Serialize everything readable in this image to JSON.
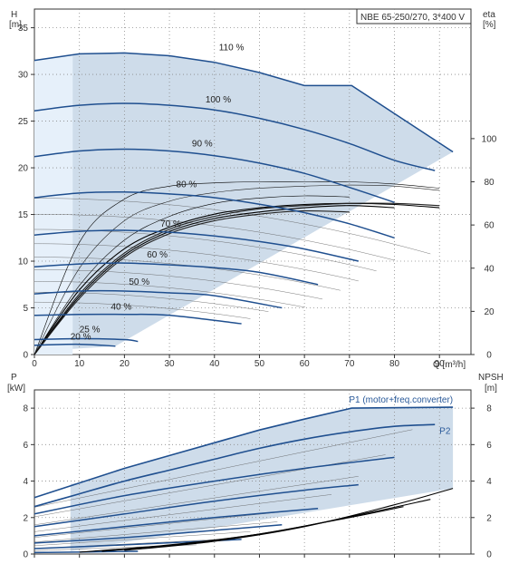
{
  "chart_data": [
    {
      "type": "line",
      "name": "head-chart",
      "title": "NBE 65-250/270, 3*400 V",
      "xlabel": "Q [m³/h]",
      "ylabel_left": {
        "name": "H",
        "unit": "[m]"
      },
      "ylabel_right": {
        "name": "eta",
        "unit": "[%]"
      },
      "xlim": [
        0,
        97
      ],
      "ylim": [
        0,
        37
      ],
      "ylim_right": [
        0,
        160
      ],
      "xticks": [
        "0",
        "10",
        "20",
        "30",
        "40",
        "50",
        "60",
        "70",
        "80",
        "90"
      ],
      "xticks_values": [
        0,
        10,
        20,
        30,
        40,
        50,
        60,
        70,
        80,
        90
      ],
      "yticks": [
        "0",
        "5",
        "10",
        "15",
        "20",
        "25",
        "30",
        "35"
      ],
      "yticks_values": [
        0,
        5,
        10,
        15,
        20,
        25,
        30,
        35
      ],
      "yticks_right": [
        "0",
        "20",
        "40",
        "60",
        "80",
        "100"
      ],
      "yticks_right_values": [
        0,
        20,
        40,
        60,
        80,
        100
      ],
      "grid": true,
      "speed_curves": [
        {
          "label": "110 %",
          "label_at": [
            41,
            32.4
          ],
          "x": [
            0,
            10,
            20,
            30,
            40,
            50,
            60,
            70.5,
            93
          ],
          "y": [
            31.5,
            32.2,
            32.3,
            32.0,
            31.3,
            30.2,
            28.8,
            28.8,
            21.7
          ]
        },
        {
          "label": "100 %",
          "label_at": [
            38,
            26.8
          ],
          "x": [
            0,
            10,
            20,
            30,
            40,
            50,
            60,
            70,
            80,
            89
          ],
          "y": [
            26.1,
            26.7,
            26.9,
            26.7,
            26.2,
            25.3,
            24.1,
            22.6,
            20.8,
            19.7
          ]
        },
        {
          "label": "90 %",
          "label_at": [
            35,
            22.1
          ],
          "x": [
            0,
            10,
            20,
            30,
            40,
            50,
            60,
            70,
            80
          ],
          "y": [
            21.2,
            21.8,
            22.0,
            21.8,
            21.3,
            20.5,
            19.4,
            17.9,
            16.3
          ]
        },
        {
          "label": "80 %",
          "label_at": [
            31.5,
            17.7
          ],
          "x": [
            0,
            10,
            20,
            30,
            40,
            50,
            60,
            70,
            80
          ],
          "y": [
            16.8,
            17.3,
            17.4,
            17.2,
            16.8,
            16.1,
            15.2,
            14.0,
            12.5
          ]
        },
        {
          "label": "70 %",
          "label_at": [
            28,
            13.5
          ],
          "x": [
            0,
            10,
            20,
            30,
            40,
            50,
            60,
            72
          ],
          "y": [
            12.8,
            13.2,
            13.3,
            13.1,
            12.7,
            12.1,
            11.3,
            10.0
          ]
        },
        {
          "label": "60 %",
          "label_at": [
            25,
            10.2
          ],
          "x": [
            0,
            10,
            20,
            30,
            40,
            50,
            63
          ],
          "y": [
            9.4,
            9.7,
            9.8,
            9.6,
            9.3,
            8.8,
            7.5
          ]
        },
        {
          "label": "50 %",
          "label_at": [
            21,
            7.3
          ],
          "x": [
            0,
            10,
            20,
            30,
            40,
            55
          ],
          "y": [
            6.5,
            6.8,
            6.8,
            6.6,
            6.3,
            5.0
          ]
        },
        {
          "label": "40 %",
          "label_at": [
            17,
            4.6
          ],
          "x": [
            0,
            10,
            20,
            30,
            46
          ],
          "y": [
            4.2,
            4.3,
            4.3,
            4.2,
            3.3
          ]
        },
        {
          "label": "25 %",
          "label_at": [
            10,
            2.2
          ],
          "x": [
            0,
            10,
            20,
            23
          ],
          "y": [
            1.6,
            1.7,
            1.6,
            1.4
          ]
        },
        {
          "label": "20 %",
          "label_at": [
            8,
            1.4
          ],
          "x": [
            0,
            10,
            18
          ],
          "y": [
            1.0,
            1.1,
            0.9
          ]
        }
      ],
      "efficiency_curves": [
        {
          "x": [
            0,
            10,
            20,
            30,
            40,
            50,
            60,
            70,
            80,
            90
          ],
          "y": [
            0,
            30,
            49,
            59,
            65,
            68,
            69.5,
            70,
            69.5,
            68
          ]
        },
        {
          "x": [
            0,
            10,
            20,
            30,
            40,
            50,
            60,
            70,
            80,
            90
          ],
          "y": [
            0,
            28,
            47,
            58,
            64,
            67.5,
            69,
            70,
            70,
            69
          ]
        },
        {
          "x": [
            0,
            10,
            20,
            30,
            40,
            50,
            60,
            70,
            80
          ],
          "y": [
            0,
            27,
            46,
            57,
            63,
            66,
            68,
            69,
            68
          ]
        },
        {
          "x": [
            0,
            10,
            20,
            30,
            40,
            50,
            60,
            70
          ],
          "y": [
            0,
            26,
            45,
            56,
            62,
            65,
            66.5,
            66
          ]
        },
        {
          "x": [
            0,
            10,
            20,
            30,
            40,
            50,
            60,
            70
          ],
          "y": [
            0,
            32,
            53,
            64,
            70,
            72.5,
            73.5,
            73
          ]
        },
        {
          "x": [
            0,
            10,
            20,
            30,
            40,
            50,
            60,
            70,
            80,
            90
          ],
          "y": [
            0,
            40,
            62,
            71,
            75,
            77,
            78,
            78.5,
            78,
            76
          ]
        },
        {
          "x": [
            0,
            10,
            20,
            30,
            40,
            50,
            60,
            70,
            80,
            90
          ],
          "y": [
            0,
            52,
            72,
            78,
            79.5,
            80,
            80,
            80,
            79,
            77
          ]
        }
      ]
    },
    {
      "type": "line",
      "name": "power-chart",
      "ylabel_left": {
        "name": "P",
        "unit": "[kW]"
      },
      "ylabel_right": {
        "name": "NPSH",
        "unit": "[m]"
      },
      "xlim": [
        0,
        97
      ],
      "ylim": [
        0,
        9
      ],
      "yticks": [
        "0",
        "2",
        "4",
        "6",
        "8"
      ],
      "yticks_values": [
        0,
        2,
        4,
        6,
        8
      ],
      "yticks_right": [
        "0",
        "2",
        "4",
        "6",
        "8"
      ],
      "yticks_right_values": [
        0,
        2,
        4,
        6,
        8
      ],
      "grid": true,
      "series": [
        {
          "name": "P1 (motor+freq.converter)",
          "x": [
            0,
            10,
            20,
            30,
            40,
            50,
            60,
            70.5,
            93
          ],
          "y": [
            3.1,
            3.9,
            4.7,
            5.4,
            6.1,
            6.8,
            7.4,
            8.0,
            8.05
          ]
        },
        {
          "name": "P2",
          "x": [
            0,
            10,
            20,
            30,
            40,
            50,
            60,
            70,
            80,
            89
          ],
          "y": [
            2.6,
            3.3,
            4.0,
            4.6,
            5.2,
            5.8,
            6.3,
            6.7,
            7.0,
            7.1
          ]
        }
      ],
      "power_speed_curves": [
        {
          "x": [
            0,
            20,
            40,
            60,
            80
          ],
          "y": [
            2.2,
            3.2,
            4.0,
            4.7,
            5.3
          ]
        },
        {
          "x": [
            0,
            20,
            40,
            60,
            72
          ],
          "y": [
            1.5,
            2.2,
            2.9,
            3.5,
            3.8
          ]
        },
        {
          "x": [
            0,
            20,
            40,
            63
          ],
          "y": [
            1.0,
            1.5,
            2.0,
            2.5
          ]
        },
        {
          "x": [
            0,
            20,
            40,
            55
          ],
          "y": [
            0.6,
            0.9,
            1.3,
            1.6
          ]
        },
        {
          "x": [
            0,
            20,
            46
          ],
          "y": [
            0.3,
            0.5,
            0.8
          ]
        },
        {
          "x": [
            0,
            23
          ],
          "y": [
            0.08,
            0.15
          ]
        }
      ],
      "npsh_curves": [
        {
          "x": [
            20,
            40,
            60,
            80,
            93
          ],
          "y": [
            0.2,
            0.7,
            1.5,
            2.7,
            3.6
          ]
        },
        {
          "x": [
            15,
            35,
            55,
            75,
            88
          ],
          "y": [
            0.15,
            0.6,
            1.3,
            2.3,
            3.0
          ]
        },
        {
          "x": [
            10,
            30,
            50,
            70,
            82
          ],
          "y": [
            0.1,
            0.5,
            1.1,
            2.0,
            2.6
          ]
        }
      ]
    }
  ]
}
